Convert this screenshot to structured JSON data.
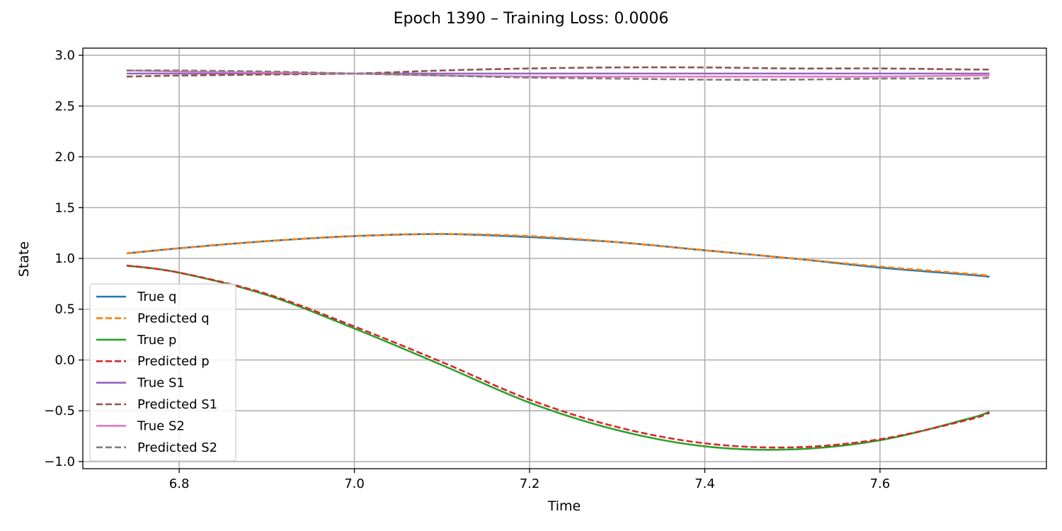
{
  "chart_data": {
    "type": "line",
    "title": "Epoch 1390 – Training Loss: 0.0006",
    "xlabel": "Time",
    "ylabel": "State",
    "xlim": [
      6.69,
      7.79
    ],
    "ylim": [
      -1.07,
      3.07
    ],
    "xticks": [
      6.8,
      7.0,
      7.2,
      7.4,
      7.6
    ],
    "xtick_labels": [
      "6.8",
      "7.0",
      "7.2",
      "7.4",
      "7.6"
    ],
    "yticks": [
      -1.0,
      -0.5,
      0.0,
      0.5,
      1.0,
      1.5,
      2.0,
      2.5,
      3.0
    ],
    "ytick_labels": [
      "−1.0",
      "−0.5",
      "0.0",
      "0.5",
      "1.0",
      "1.5",
      "2.0",
      "2.5",
      "3.0"
    ],
    "grid": true,
    "legend_position": "lower-left",
    "x": [
      6.74,
      6.8,
      6.9,
      7.0,
      7.1,
      7.2,
      7.3,
      7.4,
      7.5,
      7.6,
      7.7,
      7.725
    ],
    "series": [
      {
        "name": "True q",
        "color": "#1f77b4",
        "dash": "solid",
        "values": [
          1.05,
          1.1,
          1.17,
          1.22,
          1.24,
          1.21,
          1.16,
          1.08,
          1.0,
          0.91,
          0.84,
          0.82
        ]
      },
      {
        "name": "Predicted q",
        "color": "#ff7f0e",
        "dash": "dashed",
        "values": [
          1.05,
          1.1,
          1.17,
          1.22,
          1.24,
          1.22,
          1.16,
          1.08,
          1.0,
          0.92,
          0.85,
          0.83
        ]
      },
      {
        "name": "True p",
        "color": "#2ca02c",
        "dash": "solid",
        "values": [
          0.93,
          0.86,
          0.64,
          0.31,
          -0.05,
          -0.42,
          -0.69,
          -0.85,
          -0.88,
          -0.79,
          -0.58,
          -0.51
        ]
      },
      {
        "name": "Predicted p",
        "color": "#d62728",
        "dash": "dashed",
        "values": [
          0.93,
          0.86,
          0.65,
          0.33,
          -0.02,
          -0.39,
          -0.66,
          -0.82,
          -0.86,
          -0.78,
          -0.59,
          -0.52
        ]
      },
      {
        "name": "True S1",
        "color": "#9467bd",
        "dash": "solid",
        "values": [
          2.82,
          2.82,
          2.82,
          2.82,
          2.82,
          2.82,
          2.82,
          2.82,
          2.82,
          2.82,
          2.82,
          2.82
        ]
      },
      {
        "name": "Predicted S1",
        "color": "#8c564b",
        "dash": "dashed",
        "values": [
          2.79,
          2.8,
          2.81,
          2.82,
          2.85,
          2.87,
          2.88,
          2.88,
          2.87,
          2.87,
          2.86,
          2.86
        ]
      },
      {
        "name": "True S2",
        "color": "#e377c2",
        "dash": "solid",
        "values": [
          2.85,
          2.84,
          2.83,
          2.82,
          2.8,
          2.79,
          2.79,
          2.79,
          2.79,
          2.79,
          2.8,
          2.8
        ]
      },
      {
        "name": "Predicted S2",
        "color": "#7f7f7f",
        "dash": "dashed",
        "values": [
          2.85,
          2.85,
          2.84,
          2.82,
          2.8,
          2.78,
          2.77,
          2.76,
          2.76,
          2.77,
          2.77,
          2.78
        ]
      }
    ]
  }
}
